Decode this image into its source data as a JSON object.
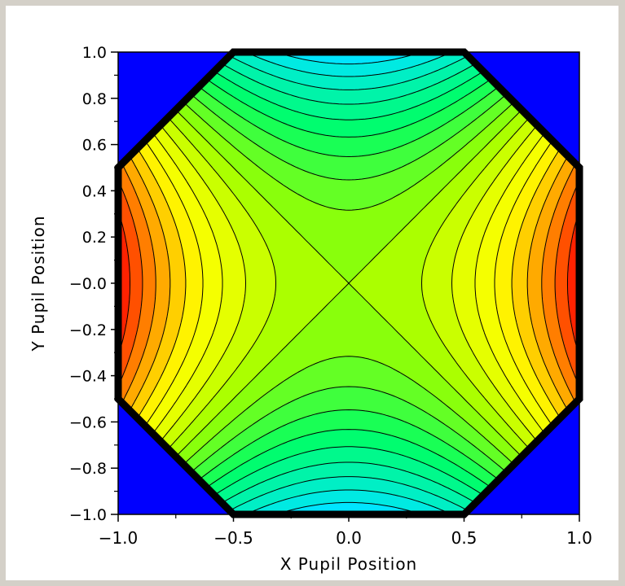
{
  "chart_data": {
    "type": "heatmap",
    "subtype": "filled-contour",
    "title": "",
    "xlabel": "X Pupil Position",
    "ylabel": "Y Pupil Position",
    "xlim": [
      -1.0,
      1.0
    ],
    "ylim": [
      -1.0,
      1.0
    ],
    "x_ticks": [
      -1.0,
      -0.5,
      0.0,
      0.5,
      1.0
    ],
    "x_tick_labels": [
      "−1.0",
      "−0.5",
      "0.0",
      "0.5",
      "1.0"
    ],
    "y_ticks": [
      1.0,
      0.8,
      0.6,
      0.4,
      0.2,
      0.0,
      -0.2,
      -0.4,
      -0.6,
      -0.8,
      -1.0
    ],
    "y_tick_labels": [
      "1.0",
      "0.8",
      "0.6",
      "0.4",
      "0.2",
      "−0.0",
      "−0.2",
      "−0.4",
      "−0.6",
      "−0.8",
      "−1.0"
    ],
    "grid": false,
    "legend": "none",
    "background_color": "#0000ff",
    "aperture": "octagon",
    "function": "x^2 - y^2 (saddle)",
    "levels": [
      -0.9,
      -0.8,
      -0.7,
      -0.6,
      -0.5,
      -0.4,
      -0.3,
      -0.2,
      -0.1,
      0.0,
      0.1,
      0.2,
      0.3,
      0.4,
      0.5,
      0.6,
      0.7,
      0.8,
      0.9
    ],
    "colormap": [
      [
        0.0,
        "#00e5ff"
      ],
      [
        0.28,
        "#00ff66"
      ],
      [
        0.5,
        "#9cff00"
      ],
      [
        0.62,
        "#e2ff00"
      ],
      [
        0.72,
        "#ffff00"
      ],
      [
        0.85,
        "#ffa500"
      ],
      [
        1.0,
        "#ff2200"
      ]
    ]
  }
}
